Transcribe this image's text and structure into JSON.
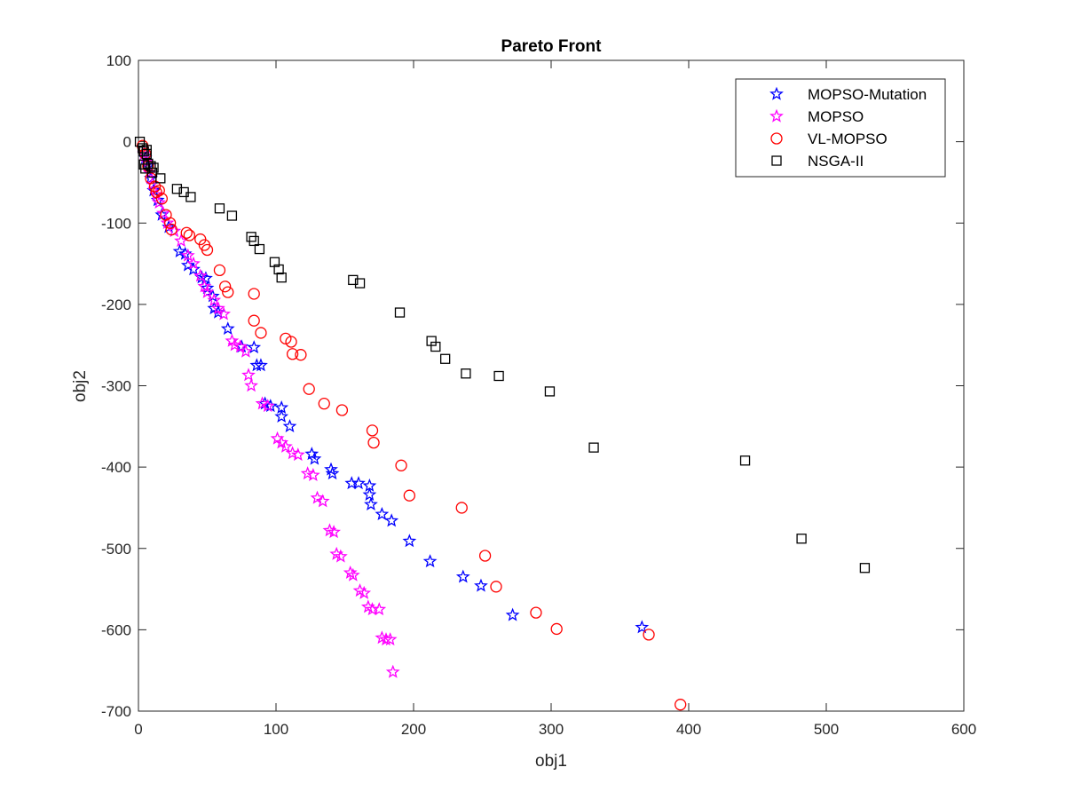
{
  "chart_data": {
    "type": "scatter",
    "title": "Pareto Front",
    "xlabel": "obj1",
    "ylabel": "obj2",
    "xlim": [
      0,
      600
    ],
    "ylim": [
      -700,
      100
    ],
    "xticks": [
      "0",
      "100",
      "200",
      "300",
      "400",
      "500",
      "600"
    ],
    "yticks": [
      "100",
      "0",
      "-100",
      "-200",
      "-300",
      "-400",
      "-500",
      "-600",
      "-700"
    ],
    "grid": false,
    "legend_position": "top-right",
    "series": [
      {
        "name": "MOPSO-Mutation",
        "marker": "star",
        "color": "#0000ff",
        "points": [
          [
            5,
            -20
          ],
          [
            7,
            -30
          ],
          [
            9,
            -45
          ],
          [
            11,
            -60
          ],
          [
            14,
            -72
          ],
          [
            17,
            -90
          ],
          [
            22,
            -105
          ],
          [
            30,
            -135
          ],
          [
            34,
            -138
          ],
          [
            36,
            -152
          ],
          [
            40,
            -157
          ],
          [
            46,
            -167
          ],
          [
            49,
            -168
          ],
          [
            50,
            -180
          ],
          [
            54,
            -190
          ],
          [
            55,
            -205
          ],
          [
            58,
            -210
          ],
          [
            65,
            -230
          ],
          [
            75,
            -252
          ],
          [
            84,
            -253
          ],
          [
            86,
            -275
          ],
          [
            89,
            -275
          ],
          [
            92,
            -322
          ],
          [
            96,
            -325
          ],
          [
            104,
            -327
          ],
          [
            104,
            -338
          ],
          [
            110,
            -350
          ],
          [
            126,
            -384
          ],
          [
            128,
            -390
          ],
          [
            140,
            -403
          ],
          [
            141,
            -408
          ],
          [
            155,
            -420
          ],
          [
            160,
            -420
          ],
          [
            168,
            -423
          ],
          [
            168,
            -434
          ],
          [
            169,
            -446
          ],
          [
            177,
            -458
          ],
          [
            184,
            -466
          ],
          [
            197,
            -491
          ],
          [
            212,
            -516
          ],
          [
            236,
            -535
          ],
          [
            249,
            -546
          ],
          [
            272,
            -582
          ],
          [
            366,
            -597
          ]
        ]
      },
      {
        "name": "MOPSO",
        "marker": "star",
        "color": "#ff00ff",
        "points": [
          [
            4,
            -15
          ],
          [
            6,
            -25
          ],
          [
            8,
            -38
          ],
          [
            10,
            -52
          ],
          [
            13,
            -65
          ],
          [
            15,
            -75
          ],
          [
            18,
            -88
          ],
          [
            21,
            -100
          ],
          [
            26,
            -110
          ],
          [
            31,
            -122
          ],
          [
            36,
            -140
          ],
          [
            40,
            -150
          ],
          [
            45,
            -165
          ],
          [
            48,
            -178
          ],
          [
            50,
            -185
          ],
          [
            55,
            -195
          ],
          [
            58,
            -205
          ],
          [
            62,
            -212
          ],
          [
            68,
            -245
          ],
          [
            70,
            -250
          ],
          [
            74,
            -252
          ],
          [
            78,
            -258
          ],
          [
            80,
            -287
          ],
          [
            82,
            -300
          ],
          [
            90,
            -322
          ],
          [
            94,
            -325
          ],
          [
            101,
            -365
          ],
          [
            104,
            -370
          ],
          [
            107,
            -375
          ],
          [
            112,
            -383
          ],
          [
            116,
            -385
          ],
          [
            123,
            -408
          ],
          [
            127,
            -410
          ],
          [
            130,
            -438
          ],
          [
            134,
            -442
          ],
          [
            139,
            -478
          ],
          [
            142,
            -480
          ],
          [
            144,
            -507
          ],
          [
            147,
            -510
          ],
          [
            154,
            -530
          ],
          [
            156,
            -533
          ],
          [
            161,
            -552
          ],
          [
            164,
            -555
          ],
          [
            167,
            -572
          ],
          [
            170,
            -575
          ],
          [
            175,
            -575
          ],
          [
            177,
            -610
          ],
          [
            180,
            -612
          ],
          [
            183,
            -612
          ],
          [
            185,
            -652
          ]
        ]
      },
      {
        "name": "VL-MOPSO",
        "marker": "circle",
        "color": "#ff0000",
        "points": [
          [
            3,
            -5
          ],
          [
            5,
            -15
          ],
          [
            7,
            -30
          ],
          [
            9,
            -45
          ],
          [
            12,
            -55
          ],
          [
            13,
            -62
          ],
          [
            15,
            -60
          ],
          [
            17,
            -70
          ],
          [
            20,
            -90
          ],
          [
            23,
            -100
          ],
          [
            24,
            -108
          ],
          [
            35,
            -112
          ],
          [
            37,
            -115
          ],
          [
            45,
            -120
          ],
          [
            48,
            -127
          ],
          [
            50,
            -133
          ],
          [
            59,
            -158
          ],
          [
            63,
            -178
          ],
          [
            65,
            -185
          ],
          [
            84,
            -187
          ],
          [
            84,
            -220
          ],
          [
            89,
            -235
          ],
          [
            107,
            -242
          ],
          [
            111,
            -246
          ],
          [
            112,
            -261
          ],
          [
            118,
            -262
          ],
          [
            124,
            -304
          ],
          [
            135,
            -322
          ],
          [
            148,
            -330
          ],
          [
            170,
            -355
          ],
          [
            171,
            -370
          ],
          [
            191,
            -398
          ],
          [
            197,
            -435
          ],
          [
            235,
            -450
          ],
          [
            252,
            -509
          ],
          [
            260,
            -547
          ],
          [
            289,
            -579
          ],
          [
            304,
            -599
          ],
          [
            371,
            -606
          ],
          [
            394,
            -692
          ]
        ]
      },
      {
        "name": "NSGA-II",
        "marker": "square",
        "color": "#000000",
        "points": [
          [
            1,
            0
          ],
          [
            3,
            -8
          ],
          [
            4,
            -12
          ],
          [
            6,
            -10
          ],
          [
            6,
            -15
          ],
          [
            4,
            -28
          ],
          [
            7,
            -27
          ],
          [
            5,
            -33
          ],
          [
            9,
            -30
          ],
          [
            11,
            -32
          ],
          [
            10,
            -38
          ],
          [
            16,
            -45
          ],
          [
            28,
            -58
          ],
          [
            33,
            -62
          ],
          [
            38,
            -68
          ],
          [
            59,
            -82
          ],
          [
            68,
            -91
          ],
          [
            82,
            -117
          ],
          [
            84,
            -122
          ],
          [
            88,
            -132
          ],
          [
            99,
            -148
          ],
          [
            102,
            -157
          ],
          [
            104,
            -167
          ],
          [
            156,
            -170
          ],
          [
            161,
            -174
          ],
          [
            190,
            -210
          ],
          [
            213,
            -245
          ],
          [
            216,
            -252
          ],
          [
            223,
            -267
          ],
          [
            238,
            -285
          ],
          [
            262,
            -288
          ],
          [
            299,
            -307
          ],
          [
            331,
            -376
          ],
          [
            441,
            -392
          ],
          [
            482,
            -488
          ],
          [
            528,
            -524
          ]
        ]
      }
    ]
  }
}
